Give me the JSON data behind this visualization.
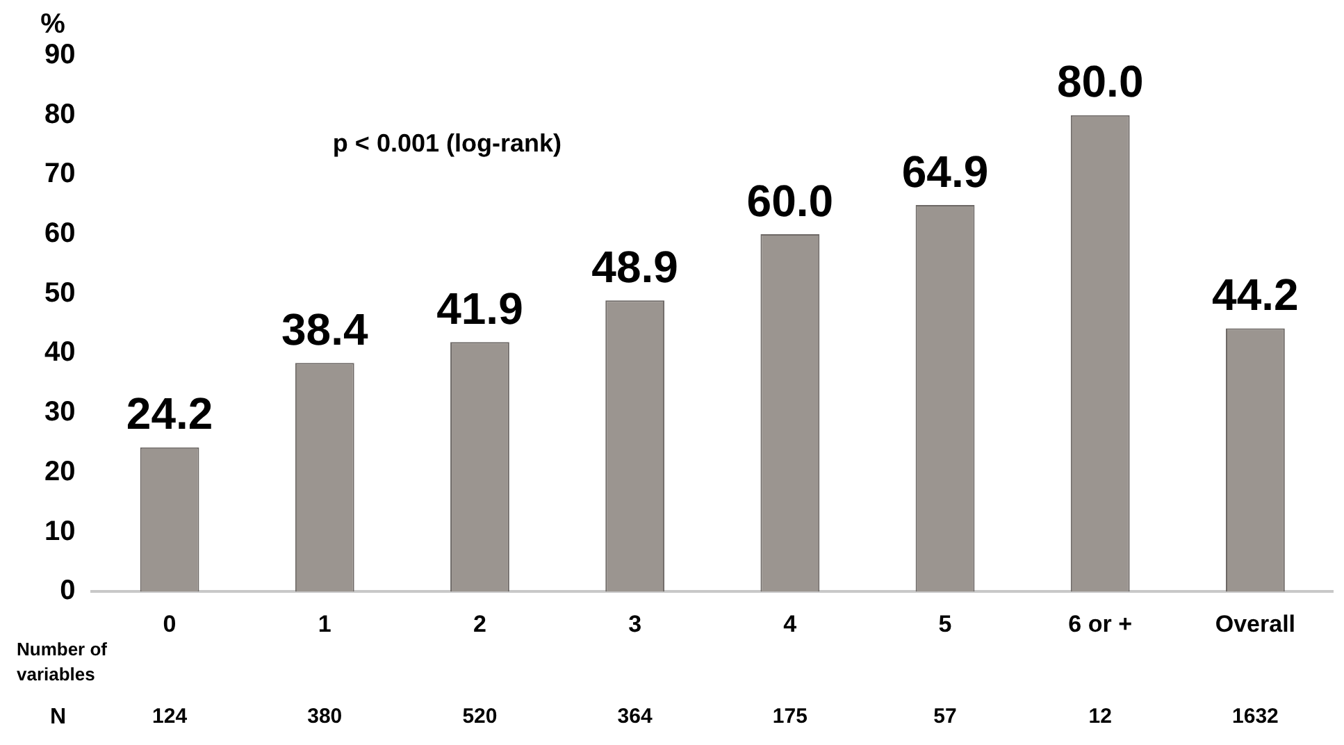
{
  "chart_data": {
    "type": "bar",
    "ylabel": "%",
    "xlabel": "Number of variables",
    "categories": [
      "0",
      "1",
      "2",
      "3",
      "4",
      "5",
      "6 or +",
      "Overall"
    ],
    "values": [
      24.2,
      38.4,
      41.9,
      48.9,
      60.0,
      64.9,
      80.0,
      44.2
    ],
    "value_labels": [
      "24.2",
      "38.4",
      "41.9",
      "48.9",
      "60.0",
      "64.9",
      "80.0",
      "44.2"
    ],
    "color": "#9b9590",
    "ylim": [
      0,
      90
    ],
    "yticks": [
      0,
      10,
      20,
      30,
      40,
      50,
      60,
      70,
      80,
      90
    ],
    "grid": false,
    "legend": false,
    "annotations": [
      "p < 0.001 (log-rank)",
      "N",
      "124",
      "380",
      "520",
      "364",
      "175",
      "57",
      "12",
      "1632"
    ]
  }
}
